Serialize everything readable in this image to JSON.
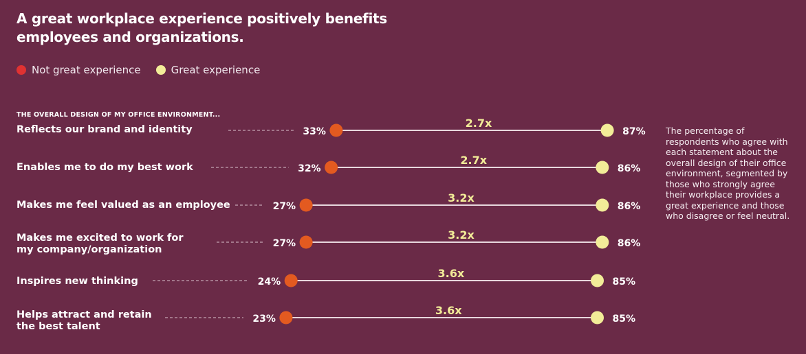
{
  "title": "A great workplace experience positively benefits employees and organizations.",
  "legend": [
    {
      "label": "Not great experience",
      "color": "#e03232"
    },
    {
      "label": "Great experience",
      "color": "#f2ec98"
    }
  ],
  "subheading": "THE OVERALL DESIGN OF MY OFFICE ENVIRONMENT...",
  "note": "The percentage of respondents who agree with each statement about the overall design of their office environment, segmented by those who strongly agree their workplace provides a great experience and those who disagree or feel neutral.",
  "colors": {
    "background": "#6a2a47",
    "not_great": "#e35a20",
    "great": "#f2ec98"
  },
  "chart_data": {
    "type": "dumbbell",
    "unit": "%",
    "series": [
      {
        "name": "Not great experience",
        "values": [
          33,
          32,
          27,
          27,
          24,
          23
        ]
      },
      {
        "name": "Great experience",
        "values": [
          87,
          86,
          86,
          86,
          85,
          85
        ]
      }
    ],
    "categories": [
      "Reflects our brand and identity",
      "Enables me to do my best work",
      "Makes me feel valued as an employee",
      "Makes me excited to work for my company/organization",
      "Inspires new thinking",
      "Helps attract and retain the best talent"
    ],
    "multipliers": [
      "2.7x",
      "2.7x",
      "3.2x",
      "3.2x",
      "3.6x",
      "3.6x"
    ]
  }
}
